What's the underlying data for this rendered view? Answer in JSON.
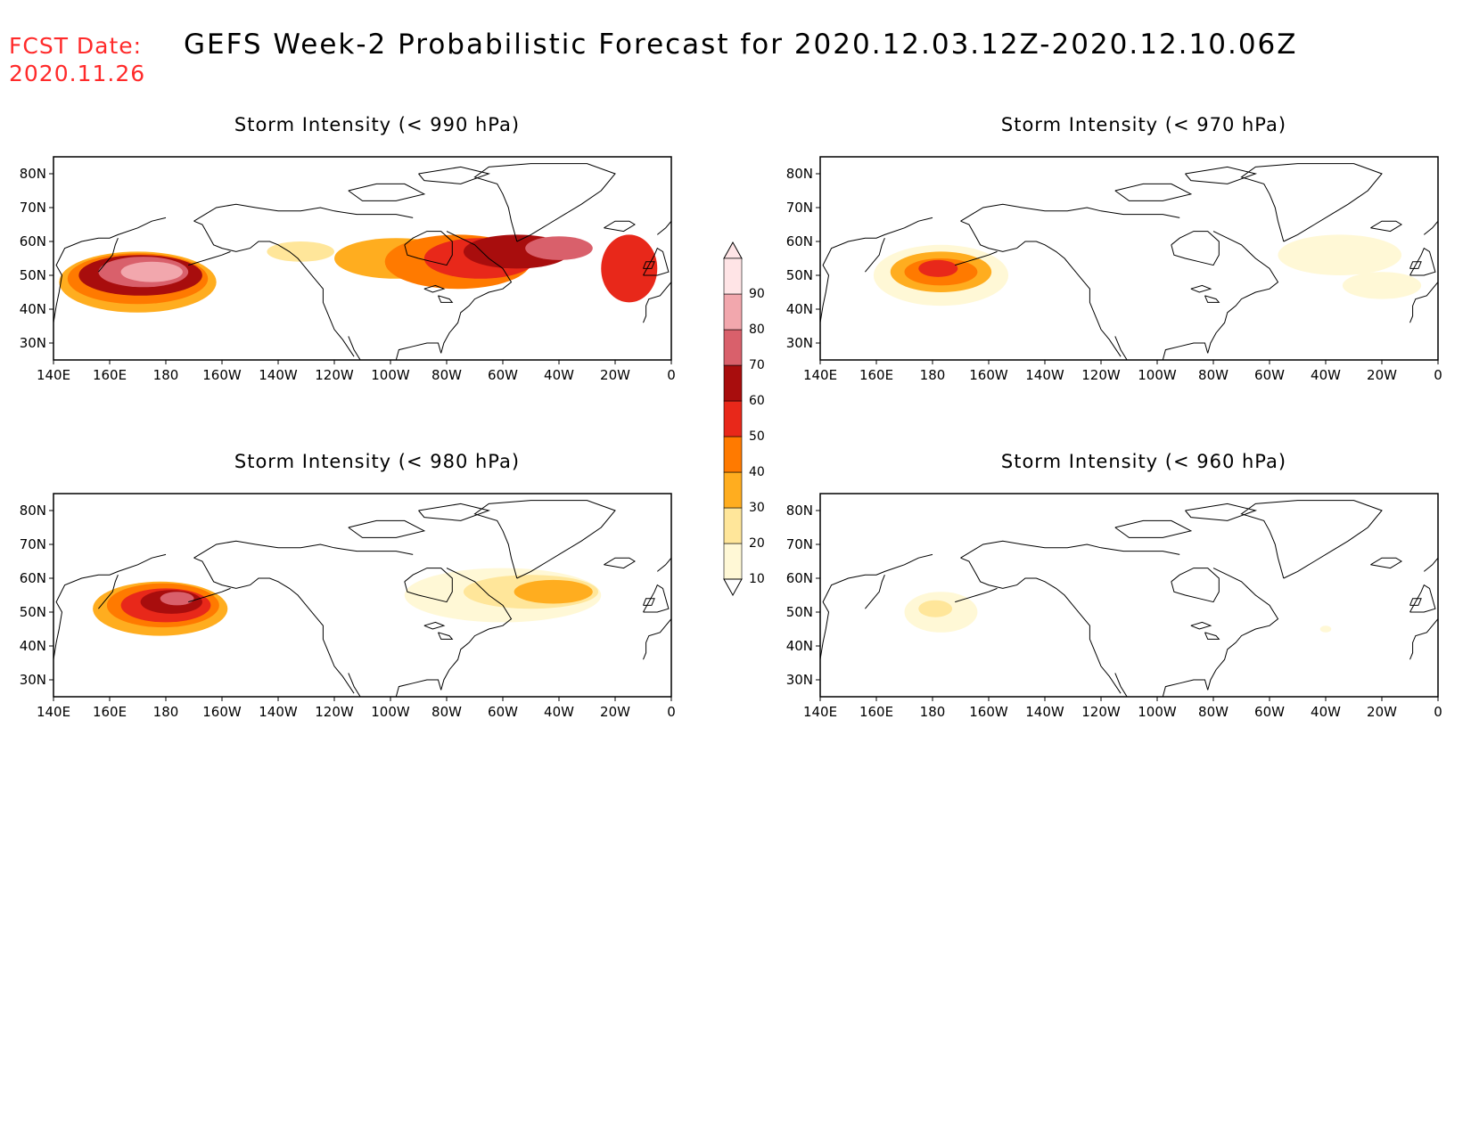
{
  "header": {
    "fcst_label": "FCST Date:",
    "fcst_date": "2020.11.26",
    "title": "GEFS Week-2 Probabilistic Forecast for 2020.12.03.12Z-2020.12.10.06Z"
  },
  "axes": {
    "lat_labels": [
      "80N",
      "70N",
      "60N",
      "50N",
      "40N",
      "30N"
    ],
    "lon_labels": [
      "140E",
      "160E",
      "180",
      "160W",
      "140W",
      "120W",
      "100W",
      "80W",
      "60W",
      "40W",
      "20W",
      "0"
    ]
  },
  "legend": {
    "levels": [
      "10",
      "20",
      "30",
      "40",
      "50",
      "60",
      "70",
      "80",
      "90"
    ],
    "colors": [
      "#fff8d6",
      "#ffe69a",
      "#ffad1f",
      "#ff7a00",
      "#e8281a",
      "#a80d0d",
      "#d9606b",
      "#f2a7ad",
      "#ffe4e6"
    ]
  },
  "panels": [
    {
      "id": "p990",
      "title": "Storm Intensity (< 990 hPa)",
      "blobs": [
        {
          "lon": 170,
          "lat": 48,
          "rx": 28,
          "ry": 9,
          "level": 3
        },
        {
          "lon": 170,
          "lat": 49,
          "rx": 25,
          "ry": 7.5,
          "level": 4
        },
        {
          "lon": 171,
          "lat": 50,
          "rx": 22,
          "ry": 6,
          "level": 6
        },
        {
          "lon": 172,
          "lat": 51,
          "rx": 16,
          "ry": 4.5,
          "level": 7
        },
        {
          "lon": 175,
          "lat": 51,
          "rx": 11,
          "ry": 3,
          "level": 8
        },
        {
          "lon": 228,
          "lat": 57,
          "rx": 12,
          "ry": 3,
          "level": 2
        },
        {
          "lon": 262,
          "lat": 55,
          "rx": 22,
          "ry": 6,
          "level": 3
        },
        {
          "lon": 284,
          "lat": 54,
          "rx": 26,
          "ry": 8,
          "level": 4
        },
        {
          "lon": 292,
          "lat": 55,
          "rx": 20,
          "ry": 6,
          "level": 5
        },
        {
          "lon": 305,
          "lat": 57,
          "rx": 19,
          "ry": 5,
          "level": 6
        },
        {
          "lon": 320,
          "lat": 58,
          "rx": 12,
          "ry": 3.5,
          "level": 7
        },
        {
          "lon": 345,
          "lat": 52,
          "rx": 10,
          "ry": 10,
          "level": 5
        }
      ]
    },
    {
      "id": "p970",
      "title": "Storm Intensity (< 970 hPa)",
      "blobs": [
        {
          "lon": 183,
          "lat": 50,
          "rx": 24,
          "ry": 9,
          "level": 1
        },
        {
          "lon": 183,
          "lat": 51,
          "rx": 18,
          "ry": 6,
          "level": 3
        },
        {
          "lon": 183,
          "lat": 51,
          "rx": 13,
          "ry": 4,
          "level": 4
        },
        {
          "lon": 182,
          "lat": 52,
          "rx": 7,
          "ry": 2.5,
          "level": 5
        },
        {
          "lon": 325,
          "lat": 56,
          "rx": 22,
          "ry": 6,
          "level": 1
        },
        {
          "lon": 340,
          "lat": 47,
          "rx": 14,
          "ry": 4,
          "level": 1
        }
      ]
    },
    {
      "id": "p980",
      "title": "Storm Intensity (< 980 hPa)",
      "blobs": [
        {
          "lon": 178,
          "lat": 51,
          "rx": 24,
          "ry": 8,
          "level": 3
        },
        {
          "lon": 179,
          "lat": 52,
          "rx": 20,
          "ry": 6.5,
          "level": 4
        },
        {
          "lon": 180,
          "lat": 52,
          "rx": 16,
          "ry": 5,
          "level": 5
        },
        {
          "lon": 182,
          "lat": 53,
          "rx": 11,
          "ry": 3.5,
          "level": 6
        },
        {
          "lon": 184,
          "lat": 54,
          "rx": 6,
          "ry": 2,
          "level": 7
        },
        {
          "lon": 300,
          "lat": 55,
          "rx": 35,
          "ry": 8,
          "level": 1
        },
        {
          "lon": 310,
          "lat": 56,
          "rx": 24,
          "ry": 5,
          "level": 2
        },
        {
          "lon": 318,
          "lat": 56,
          "rx": 14,
          "ry": 3.5,
          "level": 3
        }
      ]
    },
    {
      "id": "p960",
      "title": "Storm Intensity (< 960 hPa)",
      "blobs": [
        {
          "lon": 183,
          "lat": 50,
          "rx": 13,
          "ry": 6,
          "level": 1
        },
        {
          "lon": 181,
          "lat": 51,
          "rx": 6,
          "ry": 2.5,
          "level": 2
        },
        {
          "lon": 320,
          "lat": 45,
          "rx": 2,
          "ry": 1,
          "level": 1
        }
      ]
    }
  ]
}
